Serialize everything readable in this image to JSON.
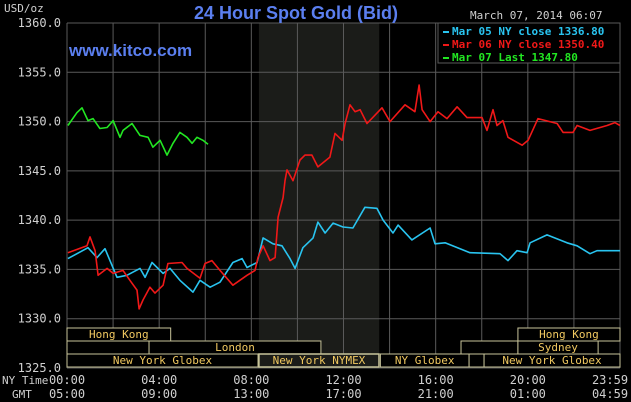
{
  "chart_data": {
    "type": "line",
    "title": "24 Hour Spot Gold (Bid)",
    "watermark": "www.kitco.com",
    "timestamp": "March 07, 2014 06:07",
    "ylabel": "USD/oz",
    "ylim": [
      1325,
      1360
    ],
    "yticks": [
      "1360.0",
      "1355.0",
      "1350.0",
      "1345.0",
      "1340.0",
      "1335.0",
      "1330.0",
      "1325.0"
    ],
    "xlim": [
      0,
      24
    ],
    "x_axis_rows": [
      {
        "label": "NY Time",
        "ticks": [
          "00:00",
          "04:00",
          "08:00",
          "12:00",
          "16:00",
          "20:00",
          "23:59"
        ]
      },
      {
        "label": "GMT",
        "ticks": [
          "05:00",
          "09:00",
          "13:00",
          "17:00",
          "21:00",
          "01:00",
          "04:59"
        ]
      }
    ],
    "grid": true,
    "highlight_band_hours": [
      8.33,
      13.55
    ],
    "legend_position": "top-right",
    "series": [
      {
        "name": "Mar 05 NY close 1336.80",
        "color": "#29c4f0",
        "points": [
          [
            0.04,
            1336.1
          ],
          [
            0.91,
            1337.2
          ],
          [
            1.3,
            1336.2
          ],
          [
            1.65,
            1337.1
          ],
          [
            2.17,
            1334.2
          ],
          [
            2.6,
            1334.4
          ],
          [
            3.17,
            1335.1
          ],
          [
            3.39,
            1334.2
          ],
          [
            3.69,
            1335.7
          ],
          [
            4.17,
            1334.6
          ],
          [
            4.47,
            1335.1
          ],
          [
            4.9,
            1333.9
          ],
          [
            5.47,
            1332.7
          ],
          [
            5.77,
            1333.9
          ],
          [
            6.21,
            1333.2
          ],
          [
            6.64,
            1333.7
          ],
          [
            7.2,
            1335.7
          ],
          [
            7.6,
            1336.1
          ],
          [
            7.81,
            1335.2
          ],
          [
            8.25,
            1335.7
          ],
          [
            8.51,
            1338.2
          ],
          [
            8.94,
            1337.6
          ],
          [
            9.33,
            1337.4
          ],
          [
            9.68,
            1336.1
          ],
          [
            9.9,
            1335.1
          ],
          [
            10.24,
            1337.2
          ],
          [
            10.68,
            1338.2
          ],
          [
            10.89,
            1339.8
          ],
          [
            11.2,
            1338.7
          ],
          [
            11.55,
            1339.7
          ],
          [
            11.98,
            1339.3
          ],
          [
            12.41,
            1339.2
          ],
          [
            12.93,
            1341.3
          ],
          [
            13.45,
            1341.2
          ],
          [
            13.72,
            1340.0
          ],
          [
            14.15,
            1338.7
          ],
          [
            14.37,
            1339.5
          ],
          [
            14.97,
            1338.0
          ],
          [
            15.76,
            1339.2
          ],
          [
            15.97,
            1337.6
          ],
          [
            16.41,
            1337.7
          ],
          [
            17.49,
            1336.7
          ],
          [
            18.79,
            1336.6
          ],
          [
            19.14,
            1335.9
          ],
          [
            19.53,
            1336.9
          ],
          [
            19.97,
            1336.7
          ],
          [
            20.1,
            1337.7
          ],
          [
            20.83,
            1338.5
          ],
          [
            21.7,
            1337.7
          ],
          [
            22.14,
            1337.4
          ],
          [
            22.7,
            1336.6
          ],
          [
            23.0,
            1336.9
          ],
          [
            24.0,
            1336.9
          ]
        ]
      },
      {
        "name": "Mar 06 NY close 1350.40",
        "color": "#f01818",
        "points": [
          [
            0.04,
            1336.7
          ],
          [
            0.87,
            1337.4
          ],
          [
            1.0,
            1338.3
          ],
          [
            1.22,
            1336.9
          ],
          [
            1.35,
            1334.4
          ],
          [
            1.74,
            1335.1
          ],
          [
            2.0,
            1334.6
          ],
          [
            2.43,
            1334.9
          ],
          [
            2.73,
            1333.9
          ],
          [
            3.04,
            1332.9
          ],
          [
            3.13,
            1331.0
          ],
          [
            3.3,
            1331.9
          ],
          [
            3.6,
            1333.2
          ],
          [
            3.82,
            1332.6
          ],
          [
            4.17,
            1333.4
          ],
          [
            4.38,
            1335.6
          ],
          [
            4.99,
            1335.7
          ],
          [
            5.21,
            1335.1
          ],
          [
            5.77,
            1334.1
          ],
          [
            5.99,
            1335.6
          ],
          [
            6.29,
            1335.9
          ],
          [
            6.64,
            1334.9
          ],
          [
            7.2,
            1333.4
          ],
          [
            7.81,
            1334.4
          ],
          [
            8.16,
            1334.9
          ],
          [
            8.29,
            1336.2
          ],
          [
            8.51,
            1337.4
          ],
          [
            8.81,
            1335.9
          ],
          [
            9.03,
            1336.2
          ],
          [
            9.16,
            1340.3
          ],
          [
            9.38,
            1342.3
          ],
          [
            9.46,
            1344.0
          ],
          [
            9.55,
            1345.1
          ],
          [
            9.81,
            1344.0
          ],
          [
            10.11,
            1346.1
          ],
          [
            10.33,
            1346.6
          ],
          [
            10.63,
            1346.6
          ],
          [
            10.89,
            1345.4
          ],
          [
            11.41,
            1346.4
          ],
          [
            11.63,
            1348.8
          ],
          [
            11.94,
            1348.1
          ],
          [
            12.07,
            1349.8
          ],
          [
            12.28,
            1351.7
          ],
          [
            12.5,
            1351.0
          ],
          [
            12.72,
            1351.2
          ],
          [
            13.02,
            1349.8
          ],
          [
            13.67,
            1351.4
          ],
          [
            14.02,
            1350.0
          ],
          [
            14.67,
            1351.7
          ],
          [
            15.1,
            1351.0
          ],
          [
            15.28,
            1353.7
          ],
          [
            15.41,
            1351.2
          ],
          [
            15.76,
            1350.0
          ],
          [
            16.1,
            1351.0
          ],
          [
            16.49,
            1350.3
          ],
          [
            16.93,
            1351.5
          ],
          [
            17.36,
            1350.4
          ],
          [
            18.01,
            1350.4
          ],
          [
            18.23,
            1349.1
          ],
          [
            18.49,
            1351.2
          ],
          [
            18.66,
            1349.6
          ],
          [
            18.92,
            1350.1
          ],
          [
            19.14,
            1348.4
          ],
          [
            19.75,
            1347.6
          ],
          [
            20.01,
            1348.1
          ],
          [
            20.44,
            1350.3
          ],
          [
            21.27,
            1349.8
          ],
          [
            21.53,
            1348.9
          ],
          [
            21.96,
            1348.9
          ],
          [
            22.14,
            1349.6
          ],
          [
            22.7,
            1349.1
          ],
          [
            23.44,
            1349.6
          ],
          [
            23.78,
            1349.9
          ],
          [
            24.0,
            1349.6
          ]
        ]
      },
      {
        "name": "Mar 07 Last 1347.80",
        "color": "#22e622",
        "points": [
          [
            0.04,
            1349.6
          ],
          [
            0.43,
            1350.9
          ],
          [
            0.65,
            1351.4
          ],
          [
            0.91,
            1350.1
          ],
          [
            1.13,
            1350.3
          ],
          [
            1.43,
            1349.3
          ],
          [
            1.74,
            1349.4
          ],
          [
            2.0,
            1350.1
          ],
          [
            2.3,
            1348.4
          ],
          [
            2.43,
            1349.1
          ],
          [
            2.82,
            1349.8
          ],
          [
            3.17,
            1348.6
          ],
          [
            3.52,
            1348.4
          ],
          [
            3.73,
            1347.4
          ],
          [
            4.04,
            1348.1
          ],
          [
            4.34,
            1346.6
          ],
          [
            4.6,
            1347.8
          ],
          [
            4.9,
            1348.9
          ],
          [
            5.21,
            1348.4
          ],
          [
            5.43,
            1347.8
          ],
          [
            5.64,
            1348.4
          ],
          [
            5.9,
            1348.1
          ],
          [
            6.12,
            1347.7
          ]
        ]
      }
    ],
    "sessions": [
      {
        "label": "Hong Kong",
        "row": 0,
        "start": 0,
        "end": 4.5
      },
      {
        "label": "Hong Kong",
        "row": 0,
        "start": 19.57,
        "end": 24
      },
      {
        "label": "",
        "row": 1,
        "start": 0,
        "end": 3.56
      },
      {
        "label": "London",
        "row": 1,
        "start": 3.56,
        "end": 11.02
      },
      {
        "label": "",
        "row": 1,
        "start": 17.1,
        "end": 19.57
      },
      {
        "label": "Sydney",
        "row": 1,
        "start": 19.57,
        "end": 23.05
      },
      {
        "label": "New York Globex",
        "row": 2,
        "start": 0,
        "end": 8.29
      },
      {
        "label": "New York NYMEX",
        "row": 2,
        "start": 8.33,
        "end": 13.54,
        "highlight": true
      },
      {
        "label": "NY Globex",
        "row": 2,
        "start": 13.6,
        "end": 17.45
      },
      {
        "label": "",
        "row": 2,
        "start": 17.45,
        "end": 18.1
      },
      {
        "label": "New York Globex",
        "row": 2,
        "start": 18.1,
        "end": 24
      }
    ],
    "colors": {
      "background": "#000000",
      "band": "#1b1c19",
      "grid": "#5a5a5a",
      "text": "#d0d0d0",
      "title": "#5b7ff0",
      "session_text": "#f0c860",
      "session_border": "#c8c49a"
    }
  }
}
